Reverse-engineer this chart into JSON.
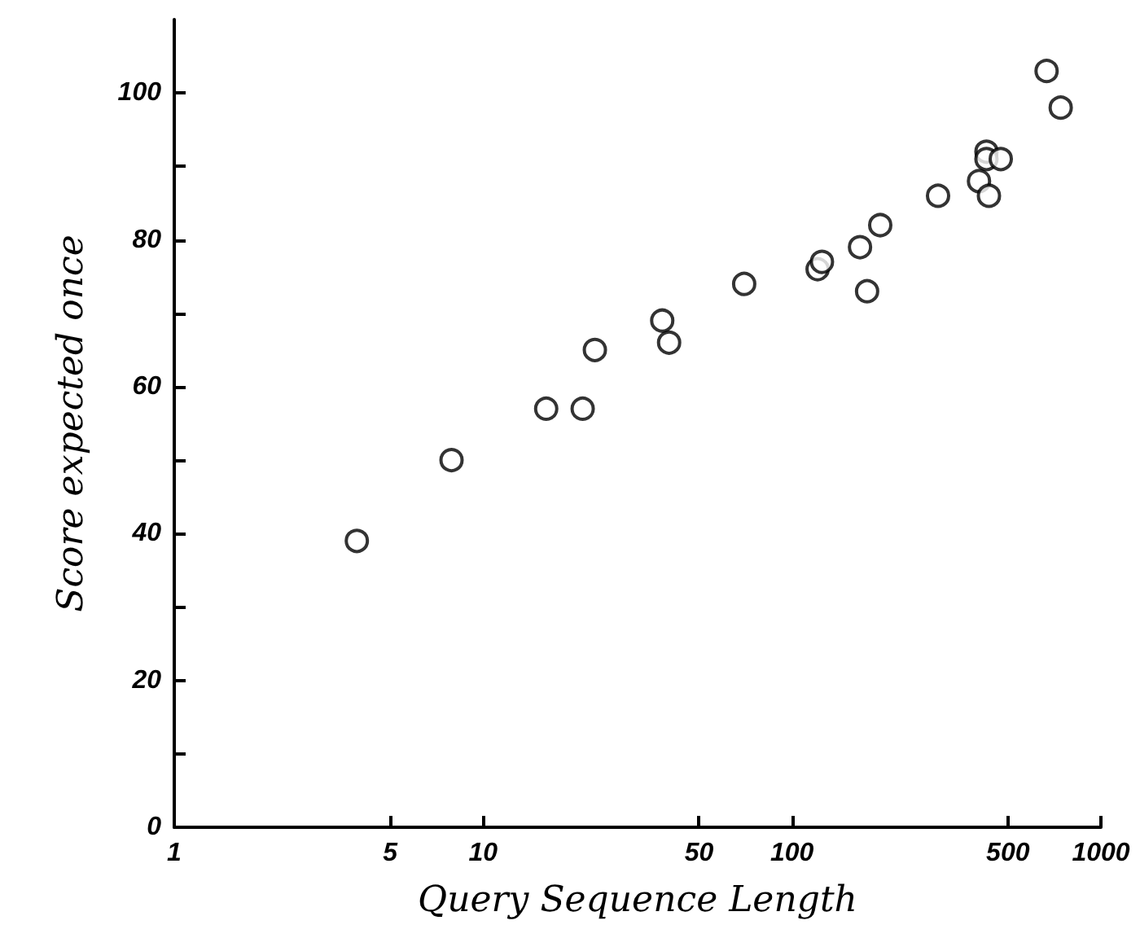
{
  "chart_data": {
    "type": "scatter",
    "xlabel": "Query Sequence Length",
    "ylabel": "Score expected once",
    "log": "x",
    "xlim": [
      1,
      1000
    ],
    "xticks": [
      1,
      5,
      10,
      50,
      100,
      500,
      1000
    ],
    "ylim": [
      0,
      110
    ],
    "yticks": [
      0,
      {
        "value": 10,
        "label": null
      },
      20,
      {
        "value": 30,
        "label": null
      },
      40,
      {
        "value": 50,
        "label": null
      },
      60,
      {
        "value": 70,
        "label": null
      },
      80,
      {
        "value": 90,
        "label": null
      },
      100
    ],
    "grid": false,
    "marker": "circle",
    "series": [
      {
        "color": "#000000",
        "x": [
          3.9,
          7.9,
          16,
          21,
          23,
          38,
          40,
          70,
          121,
          125,
          166,
          175,
          193,
          297,
          403,
          434,
          426,
          426,
          474,
          667,
          741
        ],
        "values": [
          39,
          50,
          57,
          57,
          65,
          69,
          66,
          74,
          76,
          77,
          79,
          73,
          82,
          86,
          88,
          86,
          92,
          91,
          91,
          103,
          98
        ]
      }
    ]
  }
}
